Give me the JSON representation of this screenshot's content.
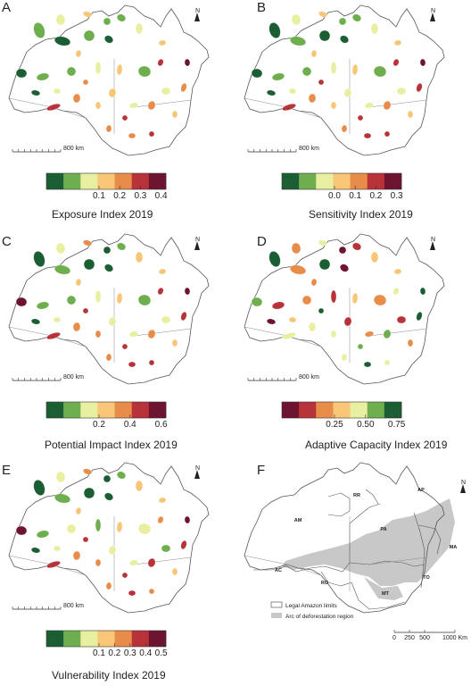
{
  "panels": [
    {
      "letter": "A",
      "title": "Exposure Index 2019",
      "legend_ticks": [
        "0.1",
        "0.2",
        "0.3",
        "0.4"
      ],
      "colors": [
        "#1b5e34",
        "#6fae4f",
        "#e9efa0",
        "#f7c777",
        "#e88c4a",
        "#b8323a",
        "#6d1430"
      ],
      "scale_label": "800 km"
    },
    {
      "letter": "B",
      "title": "Sensitivity Index 2019",
      "legend_ticks": [
        "0.0",
        "0.1",
        "0.2",
        "0.3"
      ],
      "colors": [
        "#1b5e34",
        "#6fae4f",
        "#e9efa0",
        "#f7c777",
        "#e88c4a",
        "#b8323a",
        "#6d1430"
      ],
      "scale_label": "800 km"
    },
    {
      "letter": "C",
      "title": "Potential Impact Index 2019",
      "legend_ticks": [
        "0.2",
        "0.4",
        "0.6"
      ],
      "colors": [
        "#1b5e34",
        "#6fae4f",
        "#e9efa0",
        "#f7c777",
        "#e88c4a",
        "#b8323a",
        "#6d1430"
      ],
      "scale_label": "800 km"
    },
    {
      "letter": "D",
      "title": "Adaptive Capacity Index 2019",
      "legend_ticks": [
        "0.25",
        "0.50",
        "0.75"
      ],
      "colors": [
        "#6d1430",
        "#b8323a",
        "#e88c4a",
        "#f7c777",
        "#e9efa0",
        "#6fae4f",
        "#1b5e34"
      ],
      "scale_label": "800 km"
    },
    {
      "letter": "E",
      "title": "Vulnerability Index 2019",
      "legend_ticks": [
        "0.1",
        "0.2",
        "0.3",
        "0.4",
        "0.5"
      ],
      "colors": [
        "#1b5e34",
        "#6fae4f",
        "#e9efa0",
        "#f7c777",
        "#e88c4a",
        "#b8323a",
        "#6d1430"
      ],
      "scale_label": "800 km"
    },
    {
      "letter": "F",
      "states": [
        "RR",
        "AP",
        "AM",
        "PA",
        "MA",
        "AC",
        "RO",
        "TO",
        "MT"
      ],
      "legend_items": [
        "Legal Amazon limits",
        "Arc of deforestation region"
      ],
      "scale_ticks": [
        "0",
        "250",
        "500",
        "1000 Km"
      ]
    }
  ],
  "north_label": "N"
}
